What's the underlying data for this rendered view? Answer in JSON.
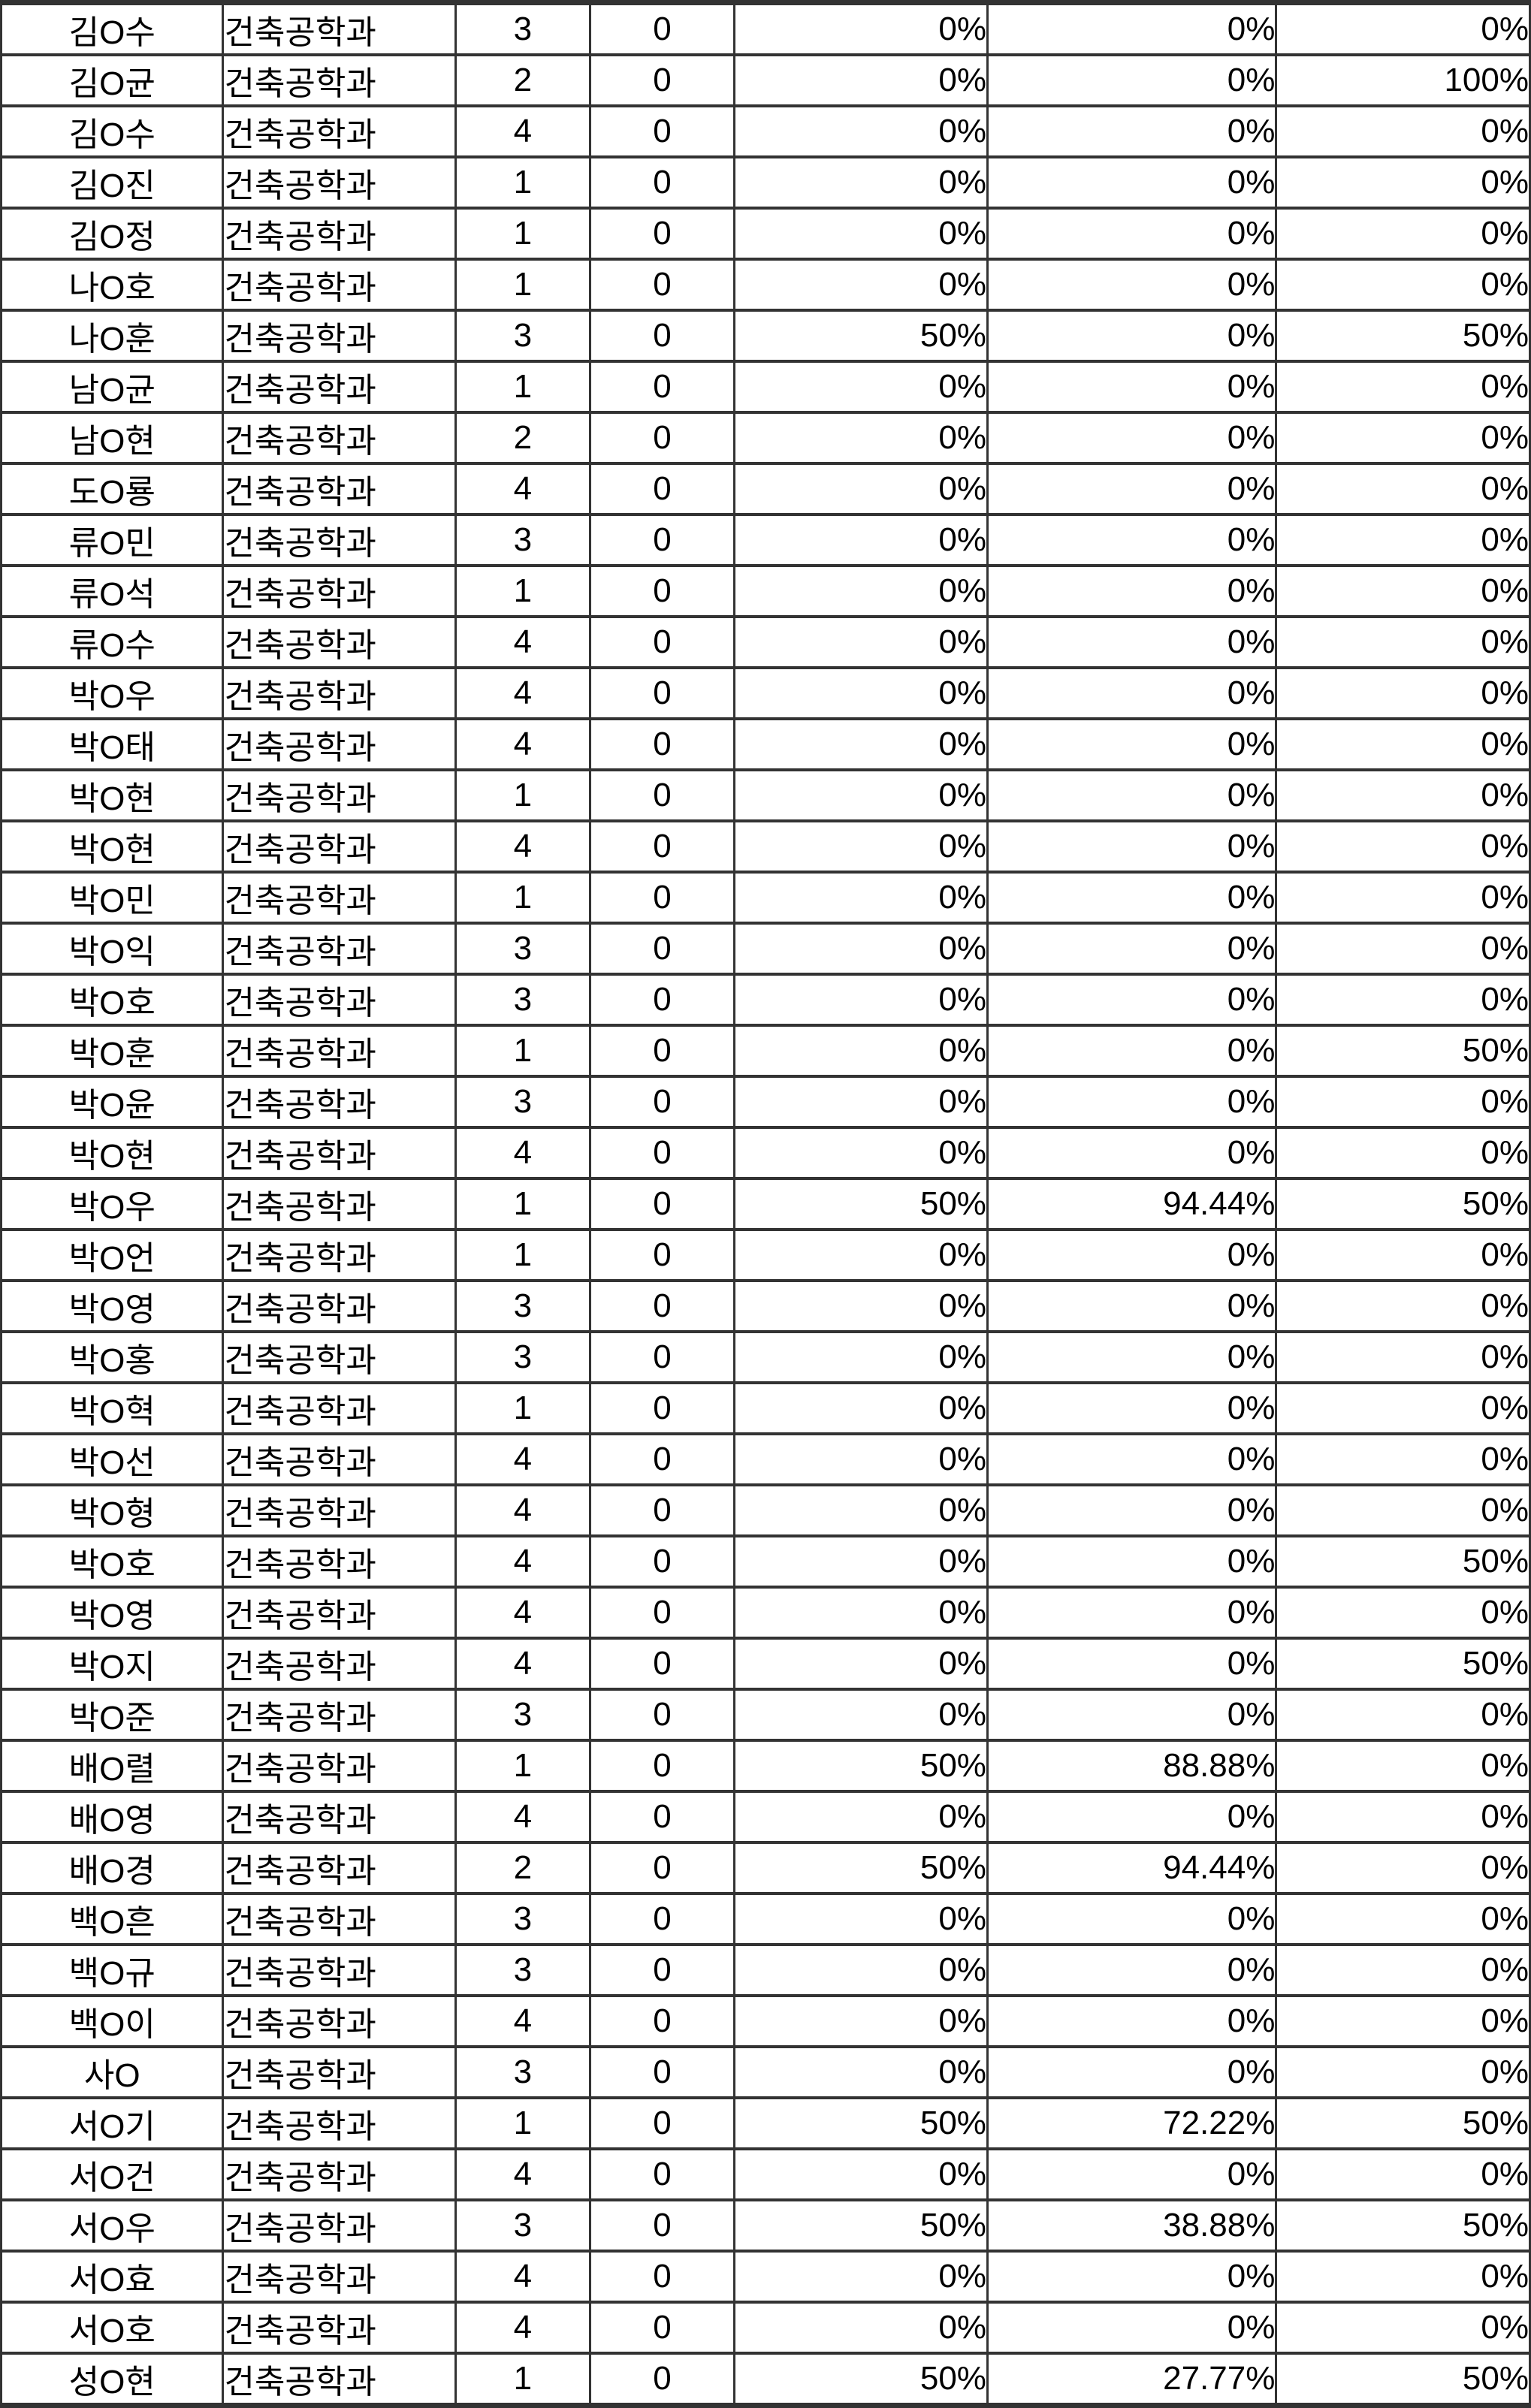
{
  "table": {
    "description_colors": {
      "border": "#333333",
      "text": "#000000",
      "cell_background": "#ffffff"
    },
    "rows": [
      [
        "김O수",
        "건축공학과",
        "3",
        "0",
        "0%",
        "0%",
        "0%"
      ],
      [
        "김O균",
        "건축공학과",
        "2",
        "0",
        "0%",
        "0%",
        "100%"
      ],
      [
        "김O수",
        "건축공학과",
        "4",
        "0",
        "0%",
        "0%",
        "0%"
      ],
      [
        "김O진",
        "건축공학과",
        "1",
        "0",
        "0%",
        "0%",
        "0%"
      ],
      [
        "김O정",
        "건축공학과",
        "1",
        "0",
        "0%",
        "0%",
        "0%"
      ],
      [
        "나O호",
        "건축공학과",
        "1",
        "0",
        "0%",
        "0%",
        "0%"
      ],
      [
        "나O훈",
        "건축공학과",
        "3",
        "0",
        "50%",
        "0%",
        "50%"
      ],
      [
        "남O균",
        "건축공학과",
        "1",
        "0",
        "0%",
        "0%",
        "0%"
      ],
      [
        "남O현",
        "건축공학과",
        "2",
        "0",
        "0%",
        "0%",
        "0%"
      ],
      [
        "도O룡",
        "건축공학과",
        "4",
        "0",
        "0%",
        "0%",
        "0%"
      ],
      [
        "류O민",
        "건축공학과",
        "3",
        "0",
        "0%",
        "0%",
        "0%"
      ],
      [
        "류O석",
        "건축공학과",
        "1",
        "0",
        "0%",
        "0%",
        "0%"
      ],
      [
        "류O수",
        "건축공학과",
        "4",
        "0",
        "0%",
        "0%",
        "0%"
      ],
      [
        "박O우",
        "건축공학과",
        "4",
        "0",
        "0%",
        "0%",
        "0%"
      ],
      [
        "박O태",
        "건축공학과",
        "4",
        "0",
        "0%",
        "0%",
        "0%"
      ],
      [
        "박O현",
        "건축공학과",
        "1",
        "0",
        "0%",
        "0%",
        "0%"
      ],
      [
        "박O현",
        "건축공학과",
        "4",
        "0",
        "0%",
        "0%",
        "0%"
      ],
      [
        "박O민",
        "건축공학과",
        "1",
        "0",
        "0%",
        "0%",
        "0%"
      ],
      [
        "박O익",
        "건축공학과",
        "3",
        "0",
        "0%",
        "0%",
        "0%"
      ],
      [
        "박O호",
        "건축공학과",
        "3",
        "0",
        "0%",
        "0%",
        "0%"
      ],
      [
        "박O훈",
        "건축공학과",
        "1",
        "0",
        "0%",
        "0%",
        "50%"
      ],
      [
        "박O윤",
        "건축공학과",
        "3",
        "0",
        "0%",
        "0%",
        "0%"
      ],
      [
        "박O현",
        "건축공학과",
        "4",
        "0",
        "0%",
        "0%",
        "0%"
      ],
      [
        "박O우",
        "건축공학과",
        "1",
        "0",
        "50%",
        "94.44%",
        "50%"
      ],
      [
        "박O언",
        "건축공학과",
        "1",
        "0",
        "0%",
        "0%",
        "0%"
      ],
      [
        "박O영",
        "건축공학과",
        "3",
        "0",
        "0%",
        "0%",
        "0%"
      ],
      [
        "박O홍",
        "건축공학과",
        "3",
        "0",
        "0%",
        "0%",
        "0%"
      ],
      [
        "박O혁",
        "건축공학과",
        "1",
        "0",
        "0%",
        "0%",
        "0%"
      ],
      [
        "박O선",
        "건축공학과",
        "4",
        "0",
        "0%",
        "0%",
        "0%"
      ],
      [
        "박O형",
        "건축공학과",
        "4",
        "0",
        "0%",
        "0%",
        "0%"
      ],
      [
        "박O호",
        "건축공학과",
        "4",
        "0",
        "0%",
        "0%",
        "50%"
      ],
      [
        "박O영",
        "건축공학과",
        "4",
        "0",
        "0%",
        "0%",
        "0%"
      ],
      [
        "박O지",
        "건축공학과",
        "4",
        "0",
        "0%",
        "0%",
        "50%"
      ],
      [
        "박O준",
        "건축공학과",
        "3",
        "0",
        "0%",
        "0%",
        "0%"
      ],
      [
        "배O렬",
        "건축공학과",
        "1",
        "0",
        "50%",
        "88.88%",
        "0%"
      ],
      [
        "배O영",
        "건축공학과",
        "4",
        "0",
        "0%",
        "0%",
        "0%"
      ],
      [
        "배O경",
        "건축공학과",
        "2",
        "0",
        "50%",
        "94.44%",
        "0%"
      ],
      [
        "백O흔",
        "건축공학과",
        "3",
        "0",
        "0%",
        "0%",
        "0%"
      ],
      [
        "백O규",
        "건축공학과",
        "3",
        "0",
        "0%",
        "0%",
        "0%"
      ],
      [
        "백O이",
        "건축공학과",
        "4",
        "0",
        "0%",
        "0%",
        "0%"
      ],
      [
        "사O",
        "건축공학과",
        "3",
        "0",
        "0%",
        "0%",
        "0%"
      ],
      [
        "서O기",
        "건축공학과",
        "1",
        "0",
        "50%",
        "72.22%",
        "50%"
      ],
      [
        "서O건",
        "건축공학과",
        "4",
        "0",
        "0%",
        "0%",
        "0%"
      ],
      [
        "서O우",
        "건축공학과",
        "3",
        "0",
        "50%",
        "38.88%",
        "50%"
      ],
      [
        "서O효",
        "건축공학과",
        "4",
        "0",
        "0%",
        "0%",
        "0%"
      ],
      [
        "서O호",
        "건축공학과",
        "4",
        "0",
        "0%",
        "0%",
        "0%"
      ],
      [
        "성O현",
        "건축공학과",
        "1",
        "0",
        "50%",
        "27.77%",
        "50%"
      ]
    ]
  }
}
